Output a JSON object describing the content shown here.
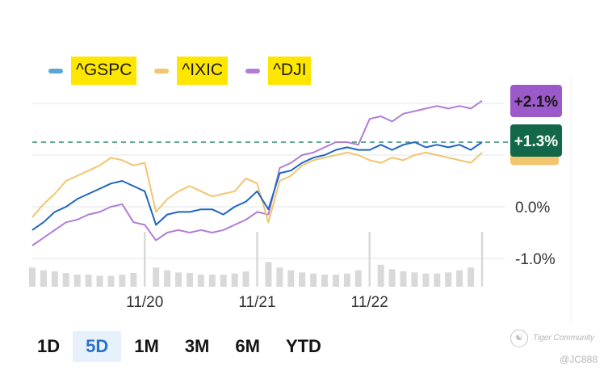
{
  "legend": {
    "items": [
      {
        "label": "^GSPC",
        "color": "#5ba6d9",
        "icon": "line-swatch-icon"
      },
      {
        "label": "^IXIC",
        "color": "#f2c56e",
        "icon": "line-swatch-icon"
      },
      {
        "label": "^DJI",
        "color": "#b17dd6",
        "icon": "line-swatch-icon"
      }
    ]
  },
  "tabs": [
    {
      "label": "1D",
      "active": false
    },
    {
      "label": "5D",
      "active": true
    },
    {
      "label": "1M",
      "active": false
    },
    {
      "label": "3M",
      "active": false
    },
    {
      "label": "6M",
      "active": false
    },
    {
      "label": "YTD",
      "active": false
    }
  ],
  "watermark": {
    "brand": "Tiger Community",
    "user": "@JC888",
    "icon": "tiger-logo-icon"
  },
  "chart_data": {
    "type": "line",
    "ylabel": "",
    "xlabel": "",
    "ylim": [
      -1.5,
      2.5
    ],
    "ytick_values": [
      0.0,
      -1.0
    ],
    "ytick_labels": [
      "0.0%",
      "-1.0%"
    ],
    "x_tick_values": [
      10,
      20,
      30
    ],
    "x_tick_labels": [
      "11/20",
      "11/21",
      "11/22"
    ],
    "xlim": [
      0,
      40
    ],
    "grid": true,
    "legend_position": "top-left",
    "reference_line": {
      "value": 1.25,
      "style": "dashed",
      "color": "#2e8b6a"
    },
    "badges": [
      {
        "text": "+2.1%",
        "value": 2.1,
        "color": "#9b59c9",
        "text_color": "#1a1a1a"
      },
      {
        "text": "+1.3%",
        "value": 1.3,
        "color": "#14684a",
        "text_color": "#ffffff"
      }
    ],
    "hidden_badge": {
      "value": 0.9,
      "color": "#f2c56e"
    },
    "series": [
      {
        "name": "^GSPC",
        "color": "#1f65c4",
        "x": [
          0,
          1,
          2,
          3,
          4,
          5,
          6,
          7,
          8,
          9,
          10,
          11,
          12,
          13,
          14,
          15,
          16,
          17,
          18,
          19,
          20,
          21,
          22,
          23,
          24,
          25,
          26,
          27,
          28,
          29,
          30,
          31,
          32,
          33,
          34,
          35,
          36,
          37,
          38,
          39,
          40
        ],
        "values": [
          -0.45,
          -0.3,
          -0.1,
          0.0,
          0.15,
          0.25,
          0.35,
          0.45,
          0.5,
          0.4,
          0.3,
          -0.35,
          -0.15,
          -0.1,
          -0.1,
          -0.05,
          -0.05,
          -0.15,
          0.0,
          0.1,
          0.3,
          -0.05,
          0.65,
          0.7,
          0.85,
          0.95,
          1.0,
          1.1,
          1.15,
          1.1,
          1.1,
          1.2,
          1.1,
          1.2,
          1.25,
          1.15,
          1.2,
          1.15,
          1.2,
          1.1,
          1.25
        ]
      },
      {
        "name": "^IXIC",
        "color": "#f2c56e",
        "x": [
          0,
          1,
          2,
          3,
          4,
          5,
          6,
          7,
          8,
          9,
          10,
          11,
          12,
          13,
          14,
          15,
          16,
          17,
          18,
          19,
          20,
          21,
          22,
          23,
          24,
          25,
          26,
          27,
          28,
          29,
          30,
          31,
          32,
          33,
          34,
          35,
          36,
          37,
          38,
          39,
          40
        ],
        "values": [
          -0.2,
          0.05,
          0.25,
          0.5,
          0.6,
          0.7,
          0.8,
          0.95,
          0.9,
          0.8,
          0.85,
          -0.1,
          0.15,
          0.3,
          0.4,
          0.3,
          0.2,
          0.25,
          0.3,
          0.55,
          0.45,
          -0.3,
          0.5,
          0.6,
          0.8,
          0.9,
          0.95,
          1.0,
          1.05,
          1.0,
          0.9,
          0.85,
          0.95,
          0.9,
          1.0,
          1.05,
          1.0,
          0.95,
          0.9,
          0.85,
          1.05
        ]
      },
      {
        "name": "^DJI",
        "color": "#b17dd6",
        "x": [
          0,
          1,
          2,
          3,
          4,
          5,
          6,
          7,
          8,
          9,
          10,
          11,
          12,
          13,
          14,
          15,
          16,
          17,
          18,
          19,
          20,
          21,
          22,
          23,
          24,
          25,
          26,
          27,
          28,
          29,
          30,
          31,
          32,
          33,
          34,
          35,
          36,
          37,
          38,
          39,
          40
        ],
        "values": [
          -0.75,
          -0.6,
          -0.45,
          -0.3,
          -0.25,
          -0.15,
          -0.1,
          0.0,
          0.05,
          -0.3,
          -0.35,
          -0.65,
          -0.5,
          -0.45,
          -0.5,
          -0.45,
          -0.5,
          -0.45,
          -0.35,
          -0.25,
          -0.1,
          -0.15,
          0.75,
          0.85,
          1.0,
          1.05,
          1.15,
          1.25,
          1.25,
          1.2,
          1.7,
          1.75,
          1.65,
          1.8,
          1.85,
          1.9,
          1.95,
          1.9,
          1.95,
          1.9,
          2.05
        ]
      }
    ],
    "volume": {
      "x": [
        0,
        1,
        2,
        3,
        4,
        5,
        6,
        7,
        8,
        9,
        10,
        11,
        12,
        13,
        14,
        15,
        16,
        17,
        18,
        19,
        20,
        21,
        22,
        23,
        24,
        25,
        26,
        27,
        28,
        29,
        30,
        31,
        32,
        33,
        34,
        35,
        36,
        37,
        38,
        39,
        40
      ],
      "values": [
        0.35,
        0.3,
        0.28,
        0.25,
        0.22,
        0.22,
        0.2,
        0.2,
        0.22,
        0.25,
        1.0,
        0.35,
        0.3,
        0.26,
        0.25,
        0.22,
        0.22,
        0.22,
        0.24,
        0.28,
        1.0,
        0.45,
        0.35,
        0.3,
        0.26,
        0.24,
        0.22,
        0.22,
        0.24,
        0.3,
        1.0,
        0.4,
        0.32,
        0.28,
        0.26,
        0.24,
        0.24,
        0.26,
        0.3,
        0.35,
        1.0
      ],
      "color": "#d9d9d9"
    }
  }
}
